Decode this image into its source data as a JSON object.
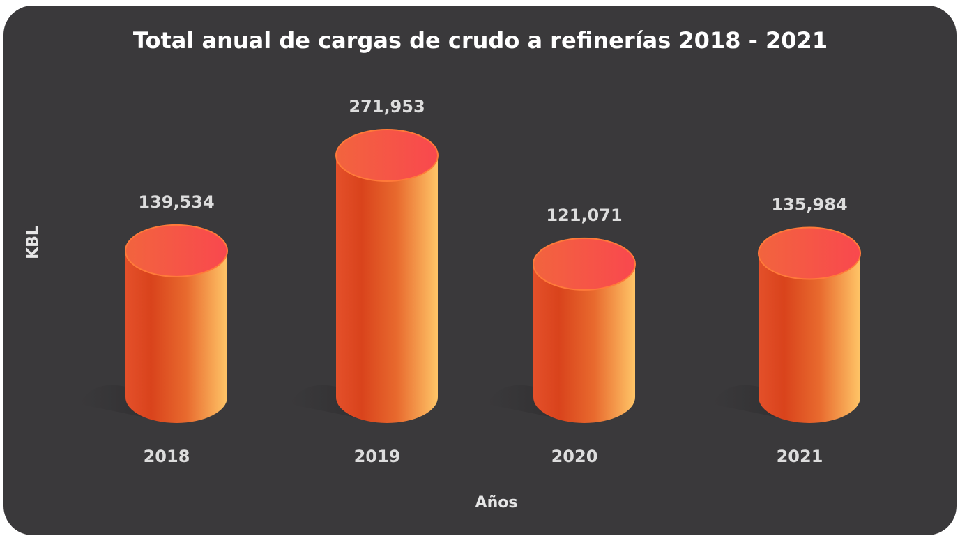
{
  "chart_data": {
    "type": "bar",
    "title": "Total anual de cargas de crudo a refinerías  2018 - 2021",
    "xlabel": "Años",
    "ylabel": "KBL",
    "categories": [
      "2018",
      "2019",
      "2020",
      "2021"
    ],
    "values": [
      139534,
      271953,
      121071,
      135984
    ],
    "value_labels": [
      "139,534",
      "271,953",
      "121,071",
      "135,984"
    ]
  }
}
